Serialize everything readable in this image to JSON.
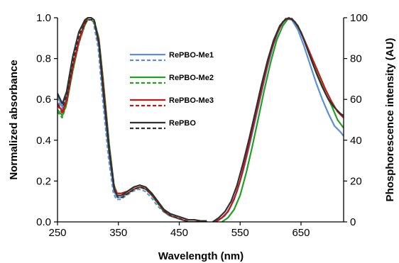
{
  "chart_data": {
    "type": "line",
    "xlabel": "Wavelength  (nm)",
    "ylabel_left": "Normalized absorbance",
    "ylabel_right": "Phosphorescence intensity (AU)",
    "xlim": [
      250,
      720
    ],
    "ylim_left": [
      0,
      1.0
    ],
    "ylim_right": [
      0,
      100
    ],
    "x_ticks": [
      250,
      350,
      450,
      550,
      650
    ],
    "y_ticks_left": [
      "0.0",
      "0.2",
      "0.4",
      "0.6",
      "0.8",
      "1.0"
    ],
    "y_ticks_right": [
      "0",
      "20",
      "40",
      "60",
      "80",
      "100"
    ],
    "grid": false,
    "legend_position": "upper-center",
    "legend": [
      {
        "label": "RePBO-Me1",
        "color": "#5b8fd6"
      },
      {
        "label": "RePBO-Me2",
        "color": "#22a022"
      },
      {
        "label": "RePBO-Me3",
        "color": "#c01818"
      },
      {
        "label": "RePBO",
        "color": "#303030"
      }
    ],
    "absorbance_series": [
      {
        "color": "#5b8fd6",
        "x": [
          250,
          258,
          265,
          275,
          285,
          295,
          300,
          305,
          310,
          318,
          325,
          335,
          343,
          348,
          355,
          365,
          375,
          385,
          395,
          405,
          415,
          425,
          435,
          445,
          455,
          465,
          475,
          485,
          495
        ],
        "y": [
          0.62,
          0.56,
          0.63,
          0.8,
          0.93,
          0.99,
          1.0,
          1.0,
          0.99,
          0.86,
          0.62,
          0.32,
          0.15,
          0.12,
          0.12,
          0.14,
          0.16,
          0.17,
          0.16,
          0.13,
          0.09,
          0.06,
          0.04,
          0.03,
          0.02,
          0.01,
          0.01,
          0.005,
          0.005
        ]
      },
      {
        "color": "#22a022",
        "x": [
          250,
          258,
          265,
          275,
          285,
          295,
          300,
          305,
          310,
          318,
          325,
          335,
          343,
          348,
          355,
          365,
          375,
          385,
          395,
          405,
          415,
          425,
          435,
          445,
          455,
          465,
          475,
          485,
          495
        ],
        "y": [
          0.55,
          0.52,
          0.58,
          0.74,
          0.88,
          0.97,
          1.0,
          1.0,
          0.99,
          0.9,
          0.7,
          0.38,
          0.18,
          0.14,
          0.14,
          0.15,
          0.17,
          0.18,
          0.17,
          0.14,
          0.1,
          0.06,
          0.04,
          0.03,
          0.02,
          0.01,
          0.01,
          0.005,
          0.005
        ]
      },
      {
        "color": "#c01818",
        "x": [
          250,
          258,
          265,
          275,
          285,
          295,
          300,
          305,
          310,
          318,
          325,
          335,
          343,
          348,
          355,
          365,
          375,
          385,
          395,
          405,
          415,
          425,
          435,
          445,
          455,
          465,
          475,
          485,
          495
        ],
        "y": [
          0.58,
          0.54,
          0.6,
          0.76,
          0.89,
          0.98,
          1.0,
          1.0,
          0.99,
          0.89,
          0.68,
          0.36,
          0.17,
          0.14,
          0.14,
          0.15,
          0.17,
          0.18,
          0.17,
          0.14,
          0.1,
          0.06,
          0.04,
          0.03,
          0.02,
          0.01,
          0.01,
          0.005,
          0.005
        ]
      },
      {
        "color": "#303030",
        "x": [
          250,
          258,
          265,
          275,
          285,
          295,
          300,
          305,
          310,
          318,
          325,
          335,
          343,
          348,
          355,
          365,
          375,
          385,
          395,
          405,
          415,
          425,
          435,
          445,
          455,
          465,
          475,
          485,
          495
        ],
        "y": [
          0.63,
          0.58,
          0.64,
          0.81,
          0.93,
          0.99,
          1.0,
          1.0,
          0.99,
          0.87,
          0.64,
          0.34,
          0.16,
          0.13,
          0.13,
          0.15,
          0.17,
          0.18,
          0.17,
          0.14,
          0.1,
          0.06,
          0.04,
          0.03,
          0.02,
          0.01,
          0.01,
          0.005,
          0.005
        ]
      }
    ],
    "phosphorescence_series": [
      {
        "color": "#5b8fd6",
        "x": [
          505,
          515,
          525,
          535,
          545,
          555,
          565,
          575,
          585,
          595,
          605,
          615,
          625,
          635,
          645,
          655,
          665,
          675,
          685,
          695,
          705,
          715,
          720
        ],
        "y": [
          0,
          1,
          3,
          8,
          15,
          25,
          37,
          50,
          63,
          76,
          87,
          95,
          99.5,
          99,
          94,
          86,
          77,
          68,
          60,
          53,
          47,
          44,
          42
        ]
      },
      {
        "color": "#22a022",
        "x": [
          520,
          530,
          540,
          550,
          560,
          570,
          580,
          590,
          600,
          610,
          620,
          630,
          640,
          650,
          660,
          670,
          680,
          690,
          700,
          710,
          720
        ],
        "y": [
          0,
          2,
          6,
          13,
          24,
          37,
          51,
          65,
          78,
          89,
          96,
          100,
          98,
          93,
          85,
          77,
          70,
          63,
          57,
          50,
          46
        ]
      },
      {
        "color": "#c01818",
        "x": [
          510,
          520,
          530,
          540,
          550,
          560,
          570,
          580,
          590,
          600,
          610,
          620,
          630,
          640,
          650,
          660,
          670,
          680,
          690,
          700,
          710,
          720
        ],
        "y": [
          0,
          2,
          5,
          11,
          20,
          32,
          45,
          58,
          71,
          83,
          92,
          98,
          100,
          98,
          93,
          86,
          79,
          72,
          65,
          59,
          54,
          51
        ]
      },
      {
        "color": "#303030",
        "x": [
          505,
          515,
          525,
          535,
          545,
          555,
          565,
          575,
          585,
          595,
          605,
          615,
          625,
          635,
          645,
          655,
          665,
          675,
          685,
          695,
          705,
          715,
          720
        ],
        "y": [
          0,
          2,
          5,
          10,
          18,
          29,
          41,
          54,
          67,
          79,
          89,
          96,
          99.5,
          99.5,
          96,
          89,
          81,
          73,
          66,
          60,
          56,
          53,
          52
        ]
      }
    ]
  }
}
